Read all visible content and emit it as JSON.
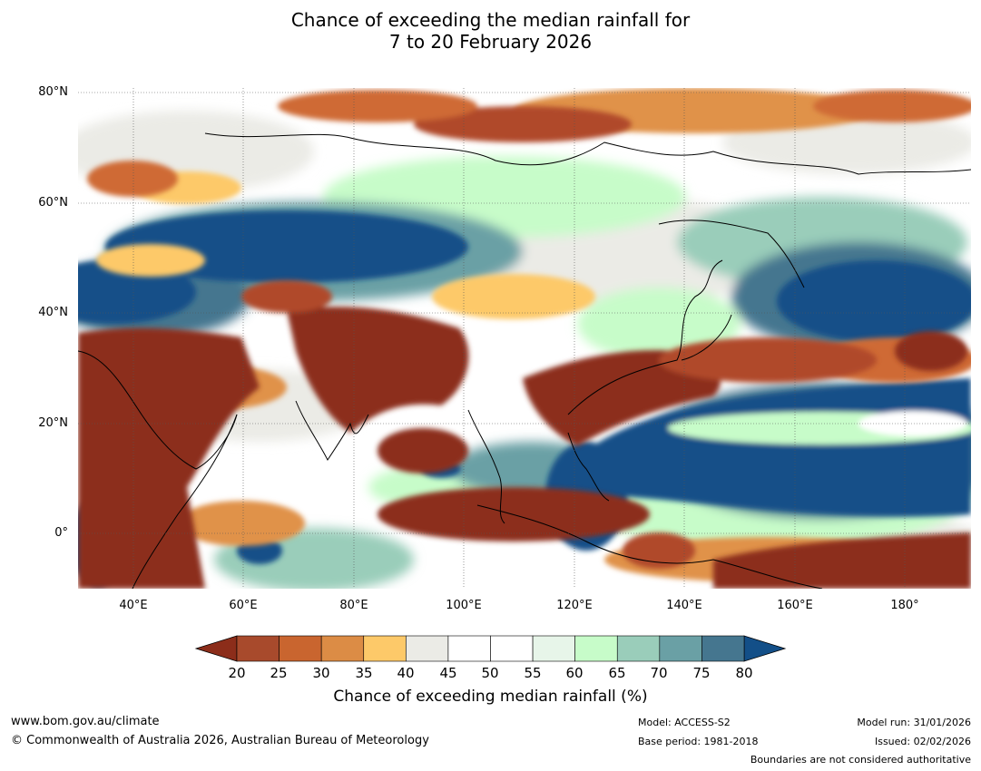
{
  "title_line1": "Chance of exceeding the median rainfall for",
  "title_line2": "7 to 20 February 2026",
  "map": {
    "lon_range": [
      30,
      192
    ],
    "lat_range": [
      -10,
      80
    ],
    "lat_labels": [
      "80°N",
      "60°N",
      "40°N",
      "20°N",
      "0°"
    ],
    "lon_labels": [
      "40°E",
      "60°E",
      "80°E",
      "100°E",
      "120°E",
      "140°E",
      "160°E",
      "180°"
    ],
    "category_colors": [
      "#8c2d1a",
      "#b0482a",
      "#cf6a35",
      "#e0924a",
      "#fdc969",
      "#ebebe6",
      "#ffffff",
      "#e7f5e9",
      "#c7fcc9",
      "#9acdba",
      "#6aa0a5",
      "#45768f",
      "#134f88"
    ]
  },
  "colorbar": {
    "ticks": [
      "20",
      "25",
      "30",
      "35",
      "40",
      "45",
      "50",
      "55",
      "60",
      "65",
      "70",
      "75",
      "80"
    ],
    "colors": [
      "#a84a2c",
      "#c9652f",
      "#dc8c45",
      "#fdc969",
      "#ebebe6",
      "#ffffff",
      "#ffffff",
      "#e7f5e9",
      "#c7fcc9",
      "#9acdba",
      "#6aa0a5",
      "#45768f"
    ],
    "under_color": "#8c2d1a",
    "over_color": "#134f88",
    "label": "Chance of exceeding median rainfall (%)"
  },
  "footer": {
    "url": "www.bom.gov.au/climate",
    "copyright": "© Commonwealth of Australia 2026, Australian Bureau of Meteorology",
    "model": "Model: ACCESS-S2",
    "base_period": "Base period: 1981-2018",
    "model_run": "Model run: 31/01/2026",
    "issued": "Issued: 02/02/2026",
    "disclaimer": "Boundaries are not considered authoritative"
  }
}
